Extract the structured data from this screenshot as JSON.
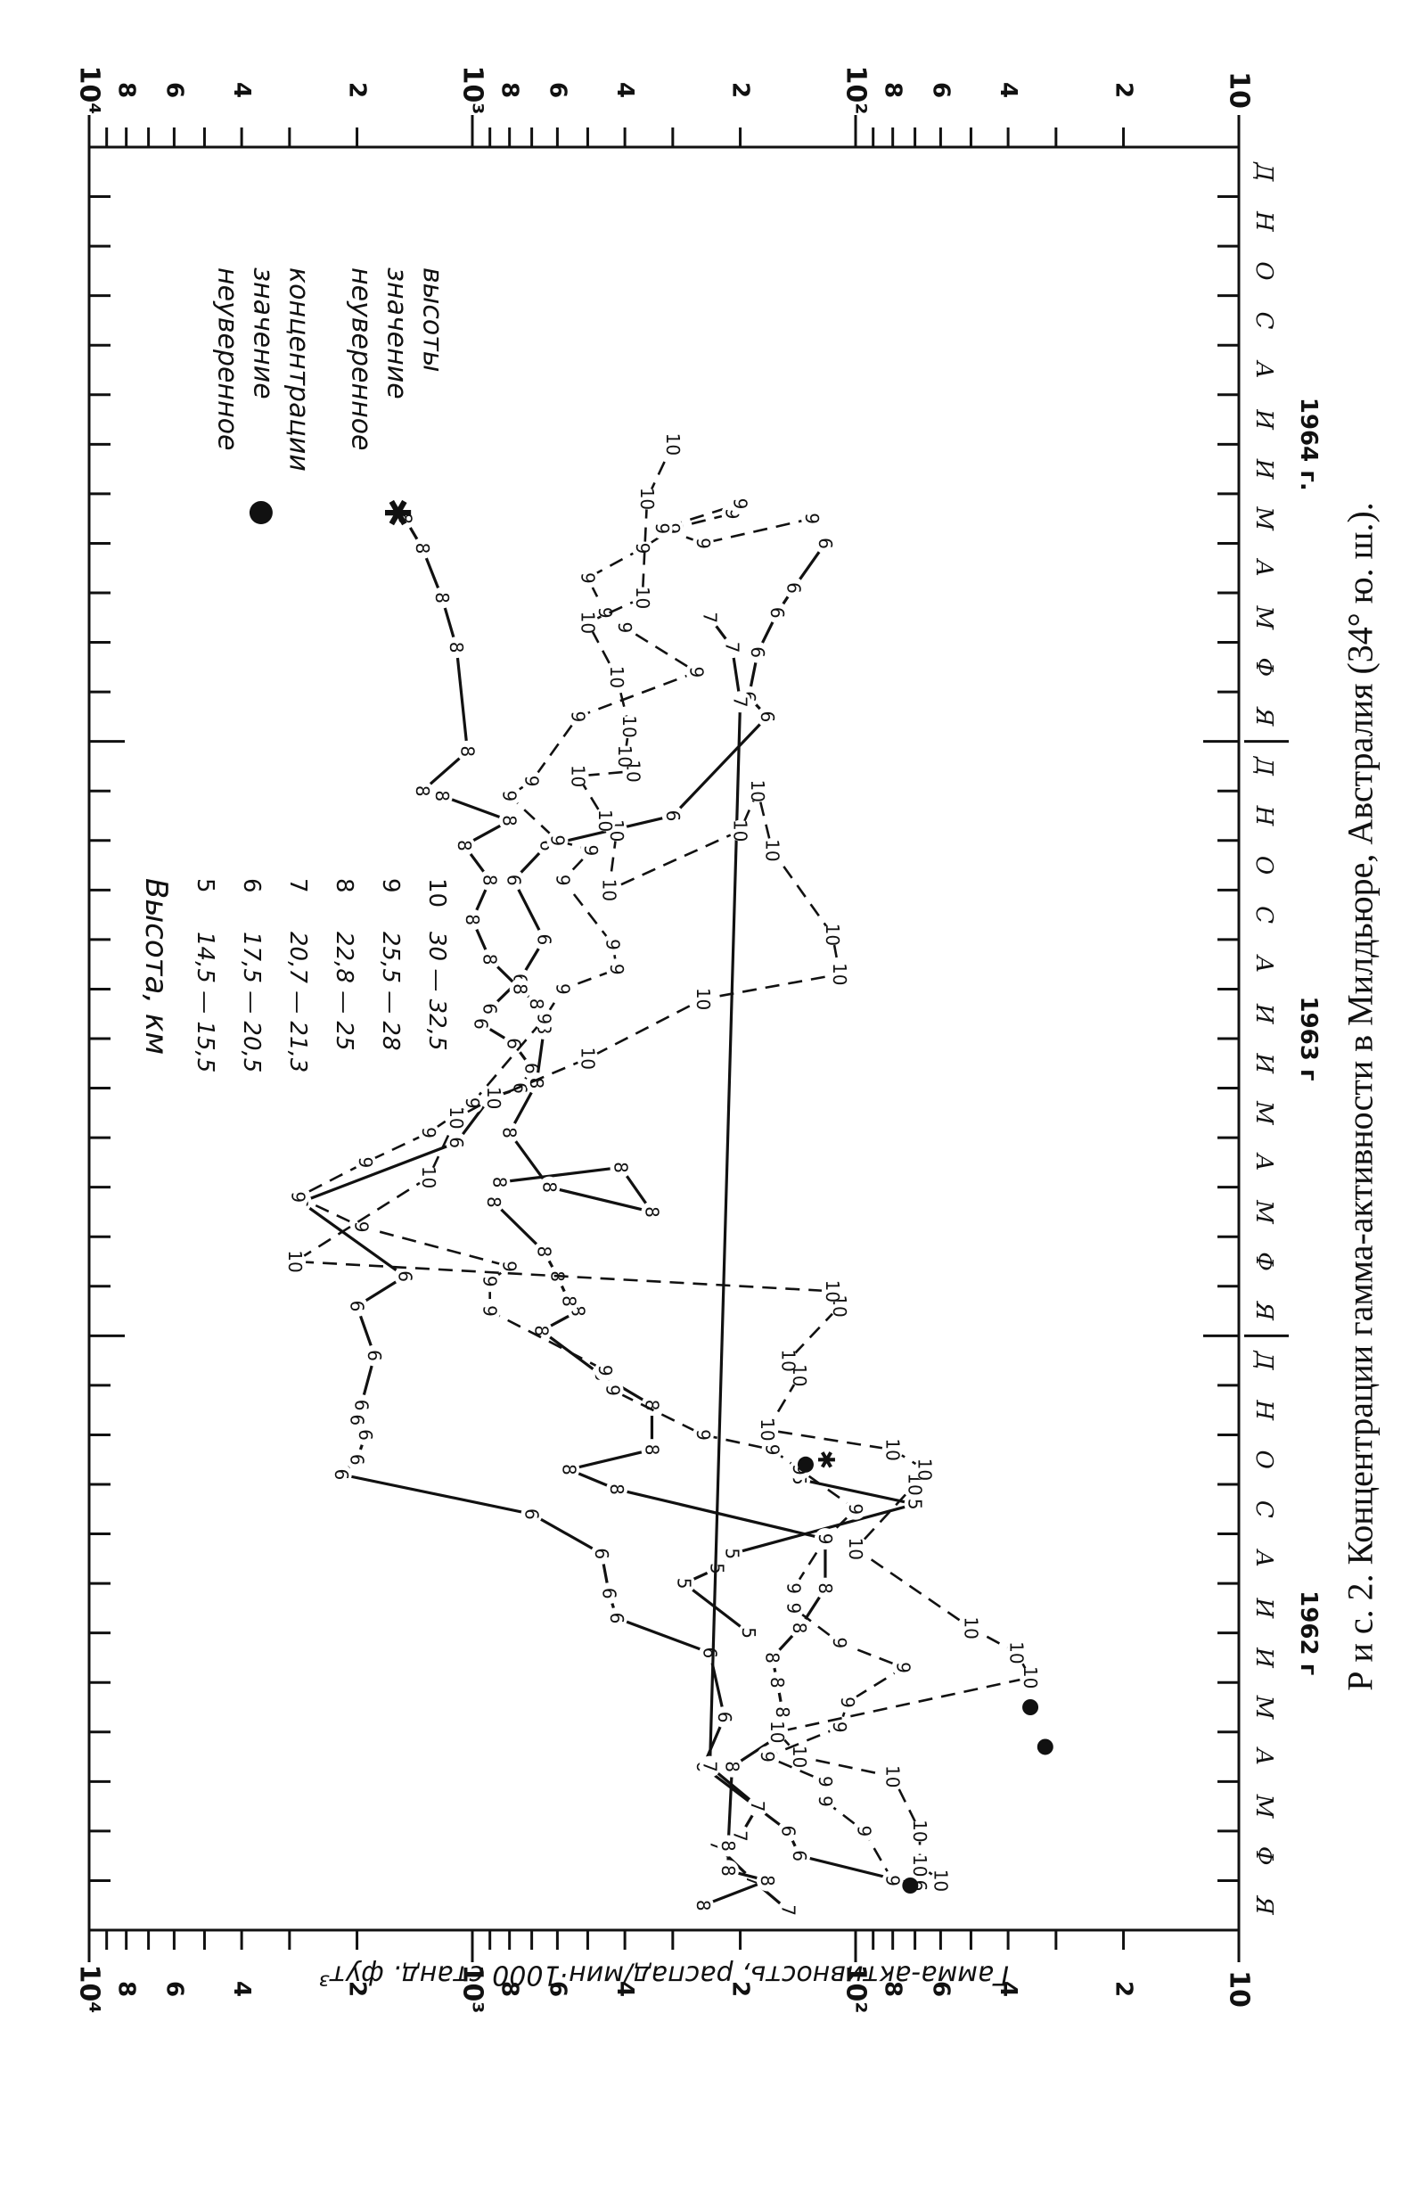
{
  "caption": "Р и с.  2.  Концентрации  гамма-активности  в  Милдьюре,  Австралия  (34° ю. ш.).",
  "chart_data": {
    "type": "line",
    "title": "",
    "ylabel": "Гамма-активность, распад/мин·1000 станд. фут³",
    "y_scale": "log",
    "ylim": [
      10,
      10000
    ],
    "y_ticks_left": [
      "10",
      "2",
      "4",
      "6",
      "8",
      "10²",
      "2",
      "4",
      "6",
      "8",
      "10³",
      "2",
      "4",
      "6",
      "8",
      "10⁴"
    ],
    "y_ticks_right": [
      "10",
      "2",
      "4",
      "6",
      "8",
      "10²",
      "2",
      "4",
      "6",
      "8",
      "10³",
      "2",
      "4",
      "6",
      "8",
      "10⁴"
    ],
    "x_month_labels": [
      "Я",
      "Ф",
      "М",
      "А",
      "М",
      "И",
      "И",
      "А",
      "С",
      "О",
      "Н",
      "Д",
      "Я",
      "Ф",
      "М",
      "А",
      "М",
      "И",
      "И",
      "А",
      "С",
      "О",
      "Н",
      "Д",
      "Я",
      "Ф",
      "М",
      "А",
      "М",
      "И",
      "И",
      "А",
      "С",
      "О",
      "Н",
      "Д"
    ],
    "year_labels": [
      "1962 г",
      "1963 г",
      "1964 г."
    ],
    "legend": {
      "title": "Высота, км",
      "items": [
        {
          "code": "5",
          "range": "14,5 — 15,5"
        },
        {
          "code": "6",
          "range": "17,5 — 20,5"
        },
        {
          "code": "7",
          "range": "20,7 — 21,3"
        },
        {
          "code": "8",
          "range": "22,8 — 25"
        },
        {
          "code": "9",
          "range": "25,5 — 28"
        },
        {
          "code": "10",
          "range": "30    — 32,5"
        }
      ],
      "symbols": [
        {
          "symbol": "●",
          "text": [
            "неуверенное",
            "значение",
            "концентрации"
          ]
        },
        {
          "symbol": "✱",
          "text": [
            "неуверенное",
            "значение",
            "высоты"
          ]
        }
      ]
    },
    "series": [
      {
        "label": "5",
        "points": [
          [
            6.0,
            190
          ],
          [
            7.0,
            280
          ],
          [
            7.3,
            230
          ],
          [
            7.6,
            210
          ],
          [
            8.6,
            70
          ],
          [
            9.1,
            140
          ]
        ]
      },
      {
        "label": "6",
        "points": [
          [
            0.9,
            68
          ],
          [
            1.5,
            140
          ],
          [
            2.0,
            150
          ],
          [
            3.3,
            250
          ],
          [
            4.3,
            220
          ],
          [
            5.6,
            240
          ],
          [
            6.3,
            420
          ],
          [
            6.8,
            440
          ],
          [
            7.6,
            460
          ],
          [
            8.4,
            700
          ],
          [
            9.2,
            2200
          ],
          [
            9.5,
            2000
          ],
          [
            10.0,
            1900
          ],
          [
            10.3,
            2000
          ],
          [
            10.6,
            1950
          ],
          [
            11.6,
            1800
          ],
          [
            12.6,
            2000
          ],
          [
            13.2,
            1500
          ],
          [
            14.7,
            2800
          ],
          [
            15.9,
            1100
          ],
          [
            16.8,
            900
          ],
          [
            17.0,
            750
          ],
          [
            17.4,
            700
          ],
          [
            17.9,
            780
          ],
          [
            18.3,
            950
          ],
          [
            18.6,
            900
          ],
          [
            19.2,
            750
          ],
          [
            20.0,
            650
          ],
          [
            21.2,
            780
          ],
          [
            21.9,
            640
          ],
          [
            22.5,
            300
          ],
          [
            24.5,
            170
          ],
          [
            24.9,
            190
          ],
          [
            25.8,
            180
          ],
          [
            26.6,
            160
          ],
          [
            27.1,
            145
          ],
          [
            28.0,
            120
          ]
        ]
      },
      {
        "label": "7",
        "points": [
          [
            0.4,
            150
          ],
          [
            1.0,
            185
          ],
          [
            1.7,
            230
          ],
          [
            1.9,
            200
          ],
          [
            2.5,
            180
          ],
          [
            3.3,
            240
          ],
          [
            24.8,
            200
          ],
          [
            25.9,
            210
          ],
          [
            26.5,
            240
          ]
        ]
      },
      {
        "label": "8",
        "points": [
          [
            0.5,
            250
          ],
          [
            1.0,
            170
          ],
          [
            1.2,
            215
          ],
          [
            1.7,
            215
          ],
          [
            3.3,
            210
          ],
          [
            3.9,
            160
          ],
          [
            4.4,
            155
          ],
          [
            5.0,
            160
          ],
          [
            5.5,
            165
          ],
          [
            6.1,
            140
          ],
          [
            6.9,
            120
          ],
          [
            7.9,
            120
          ],
          [
            8.9,
            420
          ],
          [
            9.3,
            560
          ],
          [
            9.7,
            340
          ],
          [
            10.6,
            340
          ],
          [
            11.2,
            460
          ],
          [
            12.1,
            660
          ],
          [
            12.5,
            530
          ],
          [
            12.7,
            560
          ],
          [
            13.2,
            600
          ],
          [
            13.7,
            650
          ],
          [
            14.7,
            880
          ],
          [
            15.1,
            850
          ],
          [
            15.4,
            410
          ],
          [
            14.5,
            340
          ],
          [
            15.0,
            630
          ],
          [
            16.1,
            800
          ],
          [
            17.1,
            680
          ],
          [
            18.2,
            650
          ],
          [
            18.7,
            680
          ],
          [
            19.0,
            750
          ],
          [
            19.6,
            900
          ],
          [
            20.4,
            1000
          ],
          [
            21.2,
            900
          ],
          [
            21.9,
            1050
          ],
          [
            22.4,
            800
          ],
          [
            22.9,
            1200
          ],
          [
            23.0,
            1350
          ],
          [
            23.8,
            1030
          ],
          [
            25.9,
            1100
          ],
          [
            26.9,
            1200
          ],
          [
            27.9,
            1350
          ],
          [
            28.5,
            1500
          ]
        ]
      },
      {
        "label": "9",
        "points": [
          [
            1.0,
            80
          ],
          [
            2.0,
            95
          ],
          [
            2.6,
            120
          ],
          [
            3.0,
            120
          ],
          [
            3.5,
            170
          ],
          [
            4.1,
            110
          ],
          [
            4.6,
            105
          ],
          [
            5.3,
            75
          ],
          [
            5.8,
            110
          ],
          [
            6.5,
            145
          ],
          [
            6.9,
            145
          ],
          [
            7.9,
            120
          ],
          [
            8.5,
            100
          ],
          [
            9.3,
            140
          ],
          [
            9.7,
            165
          ],
          [
            10.0,
            250
          ],
          [
            10.9,
            430
          ],
          [
            11.3,
            450
          ],
          [
            12.5,
            900
          ],
          [
            13.1,
            900
          ],
          [
            13.4,
            800
          ],
          [
            14.2,
            1950
          ],
          [
            14.8,
            2850
          ],
          [
            15.5,
            1900
          ],
          [
            16.1,
            1300
          ],
          [
            16.7,
            1000
          ],
          [
            18.4,
            650
          ],
          [
            19.0,
            580
          ],
          [
            19.4,
            420
          ],
          [
            19.9,
            430
          ],
          [
            21.2,
            580
          ],
          [
            21.8,
            490
          ],
          [
            22.0,
            600
          ],
          [
            22.9,
            800
          ],
          [
            23.2,
            700
          ],
          [
            24.5,
            530
          ],
          [
            25.4,
            260
          ],
          [
            26.3,
            400
          ],
          [
            26.6,
            450
          ],
          [
            27.3,
            500
          ],
          [
            27.9,
            360
          ],
          [
            28.3,
            300
          ],
          [
            28.6,
            210
          ],
          [
            28.8,
            200
          ],
          [
            28.3,
            320
          ],
          [
            28.0,
            250
          ],
          [
            28.5,
            130
          ]
        ]
      },
      {
        "label": "10",
        "points": [
          [
            1.0,
            60
          ],
          [
            1.3,
            68
          ],
          [
            2.0,
            68
          ],
          [
            3.1,
            80
          ],
          [
            3.5,
            140
          ],
          [
            4.0,
            160
          ],
          [
            5.1,
            35
          ],
          [
            5.6,
            38
          ],
          [
            6.1,
            50
          ],
          [
            7.7,
            100
          ],
          [
            9.0,
            70
          ],
          [
            9.3,
            66
          ],
          [
            9.7,
            80
          ],
          [
            10.1,
            170
          ],
          [
            11.2,
            140
          ],
          [
            11.5,
            150
          ],
          [
            12.6,
            110
          ],
          [
            12.9,
            115
          ],
          [
            13.5,
            2900
          ],
          [
            15.2,
            1300
          ],
          [
            16.4,
            1100
          ],
          [
            16.8,
            880
          ],
          [
            17.6,
            500
          ],
          [
            18.8,
            250
          ],
          [
            19.3,
            110
          ],
          [
            20.1,
            115
          ],
          [
            21.8,
            165
          ],
          [
            23.0,
            180
          ],
          [
            22.2,
            200
          ],
          [
            21.0,
            440
          ],
          [
            22.2,
            420
          ],
          [
            22.4,
            450
          ],
          [
            23.3,
            530
          ],
          [
            23.4,
            380
          ],
          [
            23.7,
            400
          ],
          [
            24.3,
            390
          ],
          [
            25.3,
            420
          ],
          [
            26.4,
            500
          ],
          [
            26.9,
            360
          ],
          [
            28.9,
            350
          ],
          [
            30.0,
            300
          ],
          [
            30.0,
            300
          ]
        ]
      }
    ],
    "markers": [
      {
        "symbol": "●",
        "x": 0.9,
        "y": 72
      },
      {
        "symbol": "●",
        "x": 4.5,
        "y": 35
      },
      {
        "symbol": "●",
        "x": 9.4,
        "y": 135
      },
      {
        "symbol": "●",
        "x": 3.7,
        "y": 32
      },
      {
        "symbol": "✱",
        "x": 9.5,
        "y": 120
      }
    ]
  }
}
